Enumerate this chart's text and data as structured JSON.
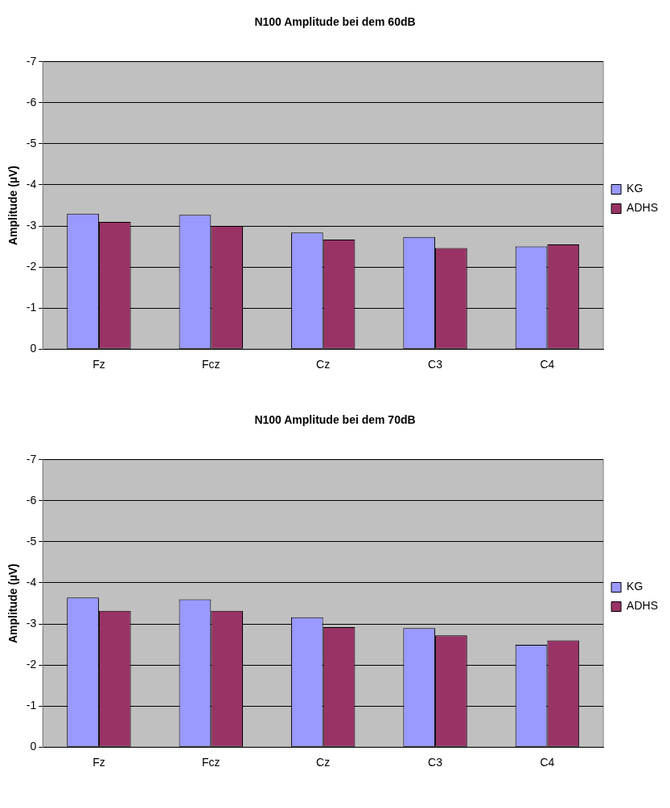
{
  "chart_data": [
    {
      "type": "bar",
      "title": "N100 Amplitude bei dem 60dB",
      "ylabel": "Amplitude (µV)",
      "categories": [
        "Fz",
        "Fcz",
        "Cz",
        "C3",
        "C4"
      ],
      "series": [
        {
          "name": "KG",
          "color": "#9999ff",
          "values": [
            -3.3,
            -3.27,
            -2.84,
            -2.73,
            -2.5
          ]
        },
        {
          "name": "ADHS",
          "color": "#993366",
          "values": [
            -3.1,
            -3.0,
            -2.67,
            -2.46,
            -2.55
          ]
        }
      ],
      "ylim": [
        0,
        -7
      ],
      "yticks": [
        0,
        -1,
        -2,
        -3,
        -4,
        -5,
        -6,
        -7
      ],
      "grid": "y",
      "legend": "right"
    },
    {
      "type": "bar",
      "title": "N100 Amplitude bei dem 70dB",
      "ylabel": "Amplitude (µV)",
      "categories": [
        "Fz",
        "Fcz",
        "Cz",
        "C3",
        "C4"
      ],
      "series": [
        {
          "name": "KG",
          "color": "#9999ff",
          "values": [
            -3.64,
            -3.6,
            -3.16,
            -2.9,
            -2.49
          ]
        },
        {
          "name": "ADHS",
          "color": "#993366",
          "values": [
            -3.32,
            -3.32,
            -2.92,
            -2.72,
            -2.6
          ]
        }
      ],
      "ylim": [
        0,
        -7
      ],
      "yticks": [
        0,
        -1,
        -2,
        -3,
        -4,
        -5,
        -6,
        -7
      ],
      "grid": "y",
      "legend": "right"
    }
  ]
}
